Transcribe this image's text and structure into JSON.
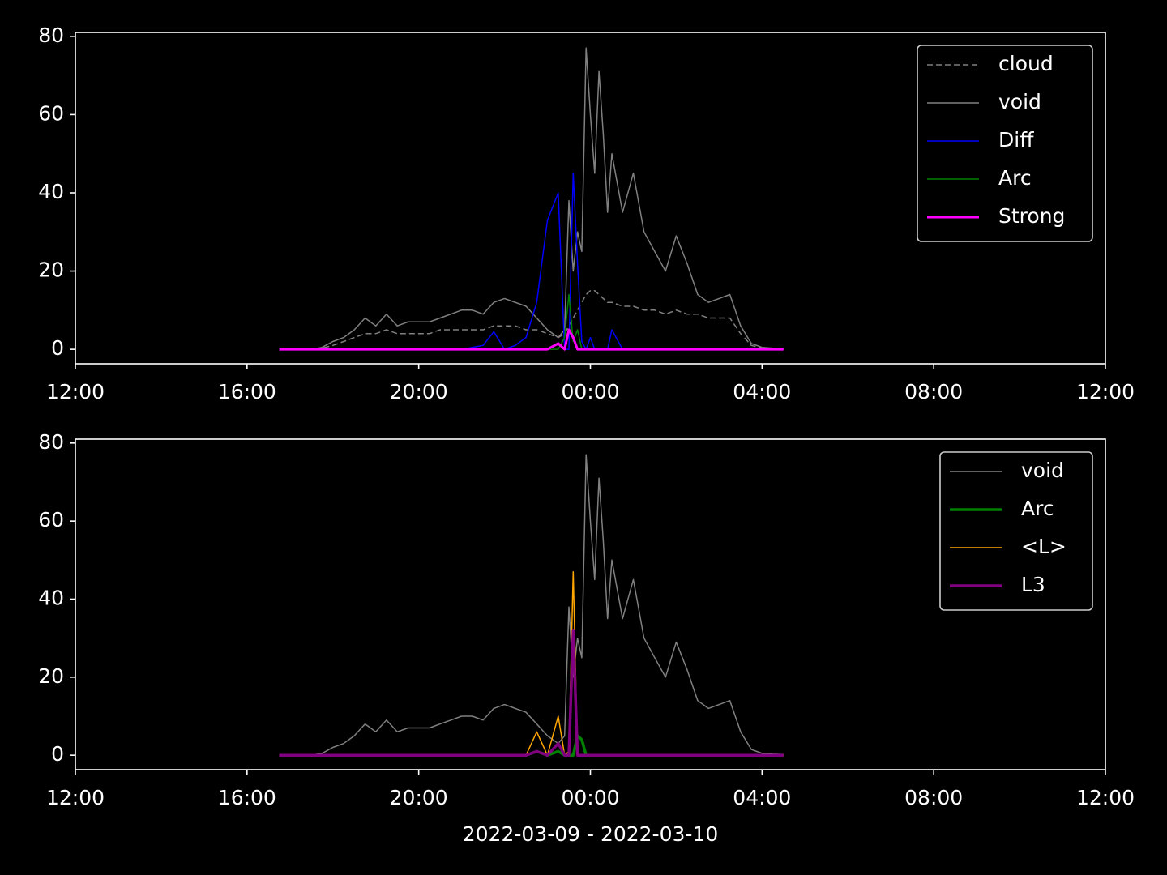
{
  "chart_data": [
    {
      "type": "line",
      "x": [
        4.75,
        5,
        5.25,
        5.5,
        5.75,
        6,
        6.25,
        6.5,
        6.75,
        7,
        7.25,
        7.5,
        7.75,
        8,
        8.25,
        8.5,
        8.75,
        9,
        9.25,
        9.5,
        9.75,
        10,
        10.25,
        10.5,
        10.75,
        11,
        11.25,
        11.4,
        11.5,
        11.6,
        11.7,
        11.8,
        11.9,
        12,
        12.1,
        12.2,
        12.3,
        12.4,
        12.5,
        12.75,
        13,
        13.25,
        13.5,
        13.75,
        14,
        14.25,
        14.5,
        14.75,
        15,
        15.25,
        15.5,
        15.75,
        16,
        16.25,
        16.5
      ],
      "xlim": [
        0,
        24
      ],
      "xticks": [
        {
          "value": 0,
          "label": "12:00"
        },
        {
          "value": 4,
          "label": "16:00"
        },
        {
          "value": 8,
          "label": "20:00"
        },
        {
          "value": 12,
          "label": "00:00"
        },
        {
          "value": 16,
          "label": "04:00"
        },
        {
          "value": 20,
          "label": "08:00"
        },
        {
          "value": 24,
          "label": "12:00"
        }
      ],
      "ylim": [
        -3.7,
        81
      ],
      "yticks": [
        0,
        20,
        40,
        60,
        80
      ],
      "legend": "upper right",
      "series": [
        {
          "name": "cloud",
          "color": "#808080",
          "linestyle": "dashed",
          "linewidth": 1.5,
          "values": [
            0,
            0,
            0,
            0,
            0.3,
            1,
            2,
            3,
            4,
            4,
            5,
            4,
            4,
            4,
            4,
            5,
            5,
            5,
            5,
            5,
            6,
            6,
            6,
            5,
            5,
            4,
            3,
            4,
            6,
            8,
            10,
            12,
            14,
            15,
            15,
            14,
            13,
            12,
            12,
            11,
            11,
            10,
            10,
            9,
            10,
            9,
            9,
            8,
            8,
            8,
            4,
            1,
            0.3,
            0.2,
            0.1
          ]
        },
        {
          "name": "void",
          "color": "#808080",
          "linestyle": "solid",
          "linewidth": 1.5,
          "values": [
            0,
            0,
            0,
            0,
            0.5,
            2,
            3,
            5,
            8,
            6,
            9,
            6,
            7,
            7,
            7,
            8,
            9,
            10,
            10,
            9,
            12,
            13,
            12,
            11,
            8,
            5,
            3,
            5,
            38,
            20,
            30,
            25,
            77,
            60,
            45,
            71,
            55,
            35,
            50,
            35,
            45,
            30,
            25,
            20,
            29,
            22,
            14,
            12,
            13,
            14,
            6,
            1.5,
            0.5,
            0.3,
            0.2
          ]
        },
        {
          "name": "Diff",
          "color": "#0000ff",
          "linestyle": "solid",
          "linewidth": 1.5,
          "values": [
            0,
            0,
            0,
            0,
            0,
            0,
            0,
            0,
            0,
            0,
            0,
            0,
            0,
            0,
            0,
            0,
            0,
            0,
            0.5,
            1,
            4.5,
            0,
            1,
            3,
            12,
            33,
            40,
            0,
            0,
            45,
            22,
            2,
            0,
            3,
            0,
            0,
            0,
            0,
            5,
            0,
            0,
            0,
            0,
            0,
            0,
            0,
            0,
            0,
            0,
            0,
            0,
            0,
            0,
            0,
            0
          ]
        },
        {
          "name": "Arc",
          "color": "#008000",
          "linestyle": "solid",
          "linewidth": 1.5,
          "values": [
            0,
            0,
            0,
            0,
            0,
            0,
            0,
            0,
            0,
            0,
            0,
            0,
            0,
            0,
            0,
            0,
            0,
            0,
            0,
            0,
            0,
            0,
            0,
            0,
            0,
            0,
            0,
            3,
            14,
            2,
            5,
            0,
            0,
            0,
            0,
            0,
            0,
            0,
            0,
            0,
            0,
            0,
            0,
            0,
            0,
            0,
            0,
            0,
            0,
            0,
            0,
            0,
            0,
            0,
            0
          ]
        },
        {
          "name": "Strong",
          "color": "#ff00ff",
          "linestyle": "solid",
          "linewidth": 3,
          "values": [
            0,
            0,
            0,
            0,
            0,
            0,
            0,
            0,
            0,
            0,
            0,
            0,
            0,
            0,
            0,
            0,
            0,
            0,
            0,
            0,
            0,
            0,
            0,
            0,
            0,
            0,
            1.5,
            0,
            5,
            3,
            0,
            0,
            0,
            0,
            0,
            0,
            0,
            0,
            0,
            0,
            0,
            0,
            0,
            0,
            0,
            0,
            0,
            0,
            0,
            0,
            0,
            0,
            0,
            0,
            0
          ]
        }
      ]
    },
    {
      "type": "line",
      "x": [
        4.75,
        5,
        5.25,
        5.5,
        5.75,
        6,
        6.25,
        6.5,
        6.75,
        7,
        7.25,
        7.5,
        7.75,
        8,
        8.25,
        8.5,
        8.75,
        9,
        9.25,
        9.5,
        9.75,
        10,
        10.25,
        10.5,
        10.75,
        11,
        11.25,
        11.4,
        11.5,
        11.6,
        11.7,
        11.8,
        11.9,
        12,
        12.1,
        12.2,
        12.3,
        12.4,
        12.5,
        12.75,
        13,
        13.25,
        13.5,
        13.75,
        14,
        14.25,
        14.5,
        14.75,
        15,
        15.25,
        15.5,
        15.75,
        16,
        16.25,
        16.5
      ],
      "xlim": [
        0,
        24
      ],
      "xticks": [
        {
          "value": 0,
          "label": "12:00"
        },
        {
          "value": 4,
          "label": "16:00"
        },
        {
          "value": 8,
          "label": "20:00"
        },
        {
          "value": 12,
          "label": "00:00"
        },
        {
          "value": 16,
          "label": "04:00"
        },
        {
          "value": 20,
          "label": "08:00"
        },
        {
          "value": 24,
          "label": "12:00"
        }
      ],
      "ylim": [
        -3.7,
        81
      ],
      "yticks": [
        0,
        20,
        40,
        60,
        80
      ],
      "xlabel": "2022-03-09 - 2022-03-10",
      "legend": "upper right",
      "series": [
        {
          "name": "void",
          "color": "#808080",
          "linestyle": "solid",
          "linewidth": 1.5,
          "values": [
            0,
            0,
            0,
            0,
            0.5,
            2,
            3,
            5,
            8,
            6,
            9,
            6,
            7,
            7,
            7,
            8,
            9,
            10,
            10,
            9,
            12,
            13,
            12,
            11,
            8,
            5,
            3,
            5,
            38,
            20,
            30,
            25,
            77,
            60,
            45,
            71,
            55,
            35,
            50,
            35,
            45,
            30,
            25,
            20,
            29,
            22,
            14,
            12,
            13,
            14,
            6,
            1.5,
            0.5,
            0.3,
            0.2
          ]
        },
        {
          "name": "Arc",
          "color": "#008000",
          "linestyle": "solid",
          "linewidth": 3.5,
          "values": [
            0,
            0,
            0,
            0,
            0,
            0,
            0,
            0,
            0,
            0,
            0,
            0,
            0,
            0,
            0,
            0,
            0,
            0,
            0,
            0,
            0,
            0,
            0,
            0,
            1,
            0,
            1,
            0,
            0,
            0,
            5,
            4,
            0,
            0,
            0,
            0,
            0,
            0,
            0,
            0,
            0,
            0,
            0,
            0,
            0,
            0,
            0,
            0,
            0,
            0,
            0,
            0,
            0,
            0,
            0
          ]
        },
        {
          "name": "<L>",
          "color": "#ffa500",
          "linestyle": "solid",
          "linewidth": 1.5,
          "values": [
            0,
            0,
            0,
            0,
            0,
            0,
            0,
            0,
            0,
            0,
            0,
            0,
            0,
            0,
            0,
            0,
            0,
            0,
            0,
            0,
            0,
            0,
            0,
            0,
            6,
            0,
            10,
            0,
            1,
            47,
            0,
            0,
            0,
            0,
            0,
            0,
            0,
            0,
            0,
            0,
            0,
            0,
            0,
            0,
            0,
            0,
            0,
            0,
            0,
            0,
            0,
            0,
            0,
            0,
            0
          ]
        },
        {
          "name": "L3",
          "color": "#800080",
          "linestyle": "solid",
          "linewidth": 3.5,
          "values": [
            0,
            0,
            0,
            0,
            0,
            0,
            0,
            0,
            0,
            0,
            0,
            0,
            0,
            0,
            0,
            0,
            0,
            0,
            0,
            0,
            0,
            0,
            0,
            0,
            1,
            0,
            3,
            0,
            0,
            32,
            0,
            0,
            0,
            0,
            0,
            0,
            0,
            0,
            0,
            0,
            0,
            0,
            0,
            0,
            0,
            0,
            0,
            0,
            0,
            0,
            0,
            0,
            0,
            0,
            0
          ]
        }
      ]
    }
  ]
}
